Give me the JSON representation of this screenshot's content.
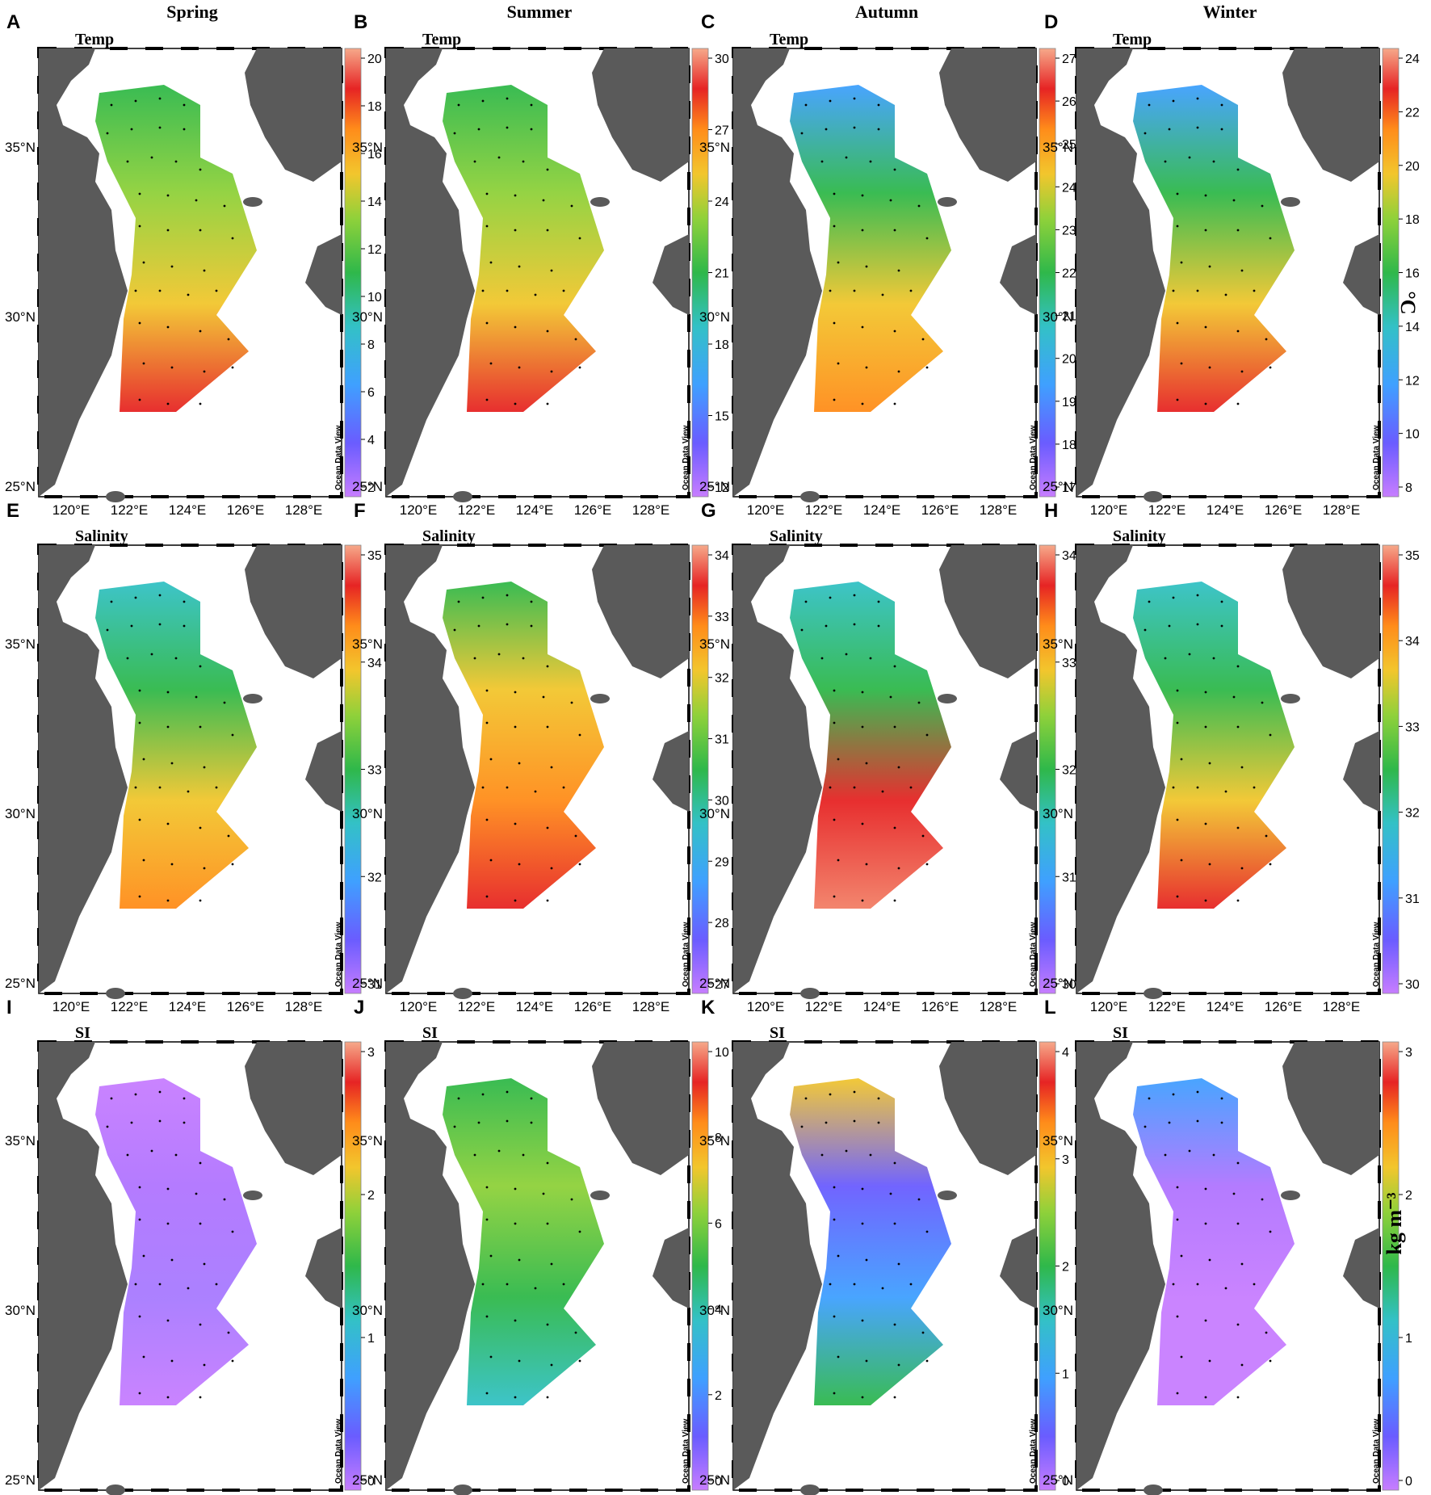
{
  "seasons": [
    "Spring",
    "Summer",
    "Autumn",
    "Winter"
  ],
  "variables": [
    "Temp",
    "Salinity",
    "SI"
  ],
  "panel_letters": [
    "A",
    "B",
    "C",
    "D",
    "E",
    "F",
    "G",
    "H",
    "I",
    "J",
    "K",
    "L"
  ],
  "lon_ticks": [
    "120°E",
    "122°E",
    "124°E",
    "126°E",
    "128°E"
  ],
  "lat_ticks": [
    "35°N",
    "30°N",
    "25°N"
  ],
  "watermark": "Ocean Data View",
  "units": {
    "temp": "°C",
    "si": "kg m⁻³"
  },
  "colorbars": [
    [
      "20",
      "18",
      "16",
      "14",
      "12",
      "10",
      "8",
      "6",
      "4",
      "2"
    ],
    [
      "30",
      "27",
      "24",
      "21",
      "18",
      "15",
      "12"
    ],
    [
      "27",
      "26",
      "25",
      "24",
      "23",
      "22",
      "21",
      "20",
      "19",
      "18",
      "17"
    ],
    [
      "24",
      "22",
      "20",
      "18",
      "16",
      "14",
      "12",
      "10",
      "8"
    ],
    [
      "35",
      "34",
      "33",
      "32",
      "31"
    ],
    [
      "34",
      "33",
      "32",
      "31",
      "30",
      "29",
      "28",
      "27"
    ],
    [
      "34",
      "33",
      "32",
      "31",
      "30"
    ],
    [
      "35",
      "34",
      "33",
      "32",
      "31",
      "30"
    ],
    [
      "3",
      "2",
      "1",
      "0"
    ],
    [
      "10",
      "8",
      "6",
      "4",
      "2",
      "0"
    ],
    [
      "4",
      "3",
      "2",
      "1",
      "0"
    ],
    [
      "3",
      "2",
      "1",
      "0"
    ]
  ],
  "colors": {
    "land": "#5a5a5a",
    "sea": "#ffffff"
  }
}
